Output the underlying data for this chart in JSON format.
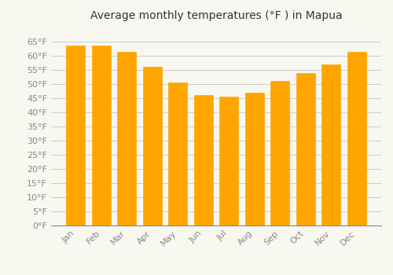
{
  "title": "Average monthly temperatures (°F ) in Mapua",
  "months": [
    "Jan",
    "Feb",
    "Mar",
    "Apr",
    "May",
    "Jun",
    "Jul",
    "Aug",
    "Sep",
    "Oct",
    "Nov",
    "Dec"
  ],
  "values": [
    63.5,
    63.5,
    61.5,
    56.0,
    50.5,
    46.0,
    45.5,
    47.0,
    51.0,
    54.0,
    57.0,
    61.5
  ],
  "bar_color": "#FFA500",
  "bar_color_top": "#FFB833",
  "bar_edge_color": "#E08000",
  "background_color": "#F8F8F0",
  "plot_bg_color": "#F8F8F0",
  "grid_color": "#CCCCCC",
  "ylim": [
    0,
    70
  ],
  "yticks": [
    0,
    5,
    10,
    15,
    20,
    25,
    30,
    35,
    40,
    45,
    50,
    55,
    60,
    65
  ],
  "title_fontsize": 10,
  "tick_fontsize": 8,
  "tick_color": "#888888",
  "title_color": "#333333",
  "bar_width": 0.75
}
